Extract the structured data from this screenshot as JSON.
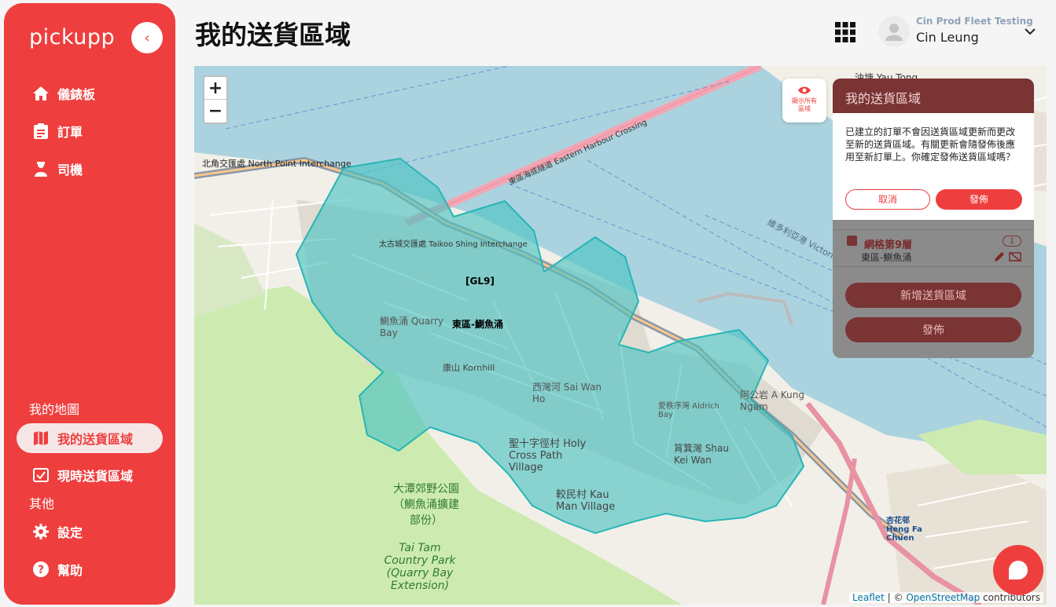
{
  "sidebar": {
    "logo": "pickupp",
    "nav": [
      {
        "label": "儀錶板",
        "icon": "home-icon"
      },
      {
        "label": "訂單",
        "icon": "clipboard-icon"
      },
      {
        "label": "司機",
        "icon": "driver-icon"
      }
    ],
    "my_map_label": "我的地圖",
    "map_items": [
      {
        "label": "我的送貨區域",
        "icon": "map-icon",
        "active": true
      },
      {
        "label": "現時送貨區域",
        "icon": "check-calendar-icon"
      }
    ],
    "other_label": "其他",
    "other_items": [
      {
        "label": "設定",
        "icon": "gear-icon"
      },
      {
        "label": "幫助",
        "icon": "help-icon"
      }
    ]
  },
  "header": {
    "title": "我的送貨區域",
    "org": "Cin Prod Fleet Testing",
    "user": "Cin Leung"
  },
  "map": {
    "zoom_in": "+",
    "zoom_out": "−",
    "show_all": "顯示所有區域",
    "labels": {
      "grid": "[GL9]",
      "zone": "東區-鰂魚涌",
      "harbour": "維多利亞港 Victoria Harbour",
      "crossing": "東區海底隧道 Eastern Harbour Crossing",
      "quarry_bay": "鰂魚涌 Quarry Bay",
      "sai_wan_ho": "西灣河 Sai Wan Ho",
      "yau_tong": "油塘 Yau Tong",
      "aldrich": "愛秩序灣 Aldrich Bay",
      "a_kung_ngam": "阿公岩 A Kung Ngam",
      "tai_tam": "大潭郊野公園（鰂魚涌擴建部份）",
      "tai_tam_en": "Tai Tam Country Park (Quarry Bay Extension)",
      "north_point": "北角交匯處 North Point Interchange",
      "taikoo": "太古城交匯處 Taikoo Shing Interchange",
      "kornhill": "康山 Kornhill",
      "holy_cross": "聖十字徑村 Holy Cross Path Village",
      "kau_man": "較民村 Kau Man Village",
      "tsin_shui": "筲箕灣 Shau Kei Wan",
      "heng_fa": "杏花邨 Heng Fa Chuen"
    },
    "attribution_leaflet": "Leaflet",
    "attribution_sep": " | © ",
    "attribution_osm": "OpenStreetMap",
    "attribution_tail": " contributors"
  },
  "panel": {
    "title": "我的送貨區域",
    "dialog_text": "已建立的訂單不會因送貨區域更新而更改至新的送貨區域。有關更新會隨發佈後應用至新訂單上。你確定發佈送貨區域嗎？",
    "cancel": "取消",
    "confirm": "發佈",
    "zone_name": "網格第9層",
    "zone_sub": "東區-鰂魚涌",
    "zone_count": "1",
    "add_zone": "新增送貨區域",
    "publish": "發佈"
  },
  "colors": {
    "brand": "#ef3e3e",
    "zone_fill": "#4fc3c3",
    "water": "#aad3df",
    "land": "#f2efe9",
    "park": "#cdebb0"
  }
}
